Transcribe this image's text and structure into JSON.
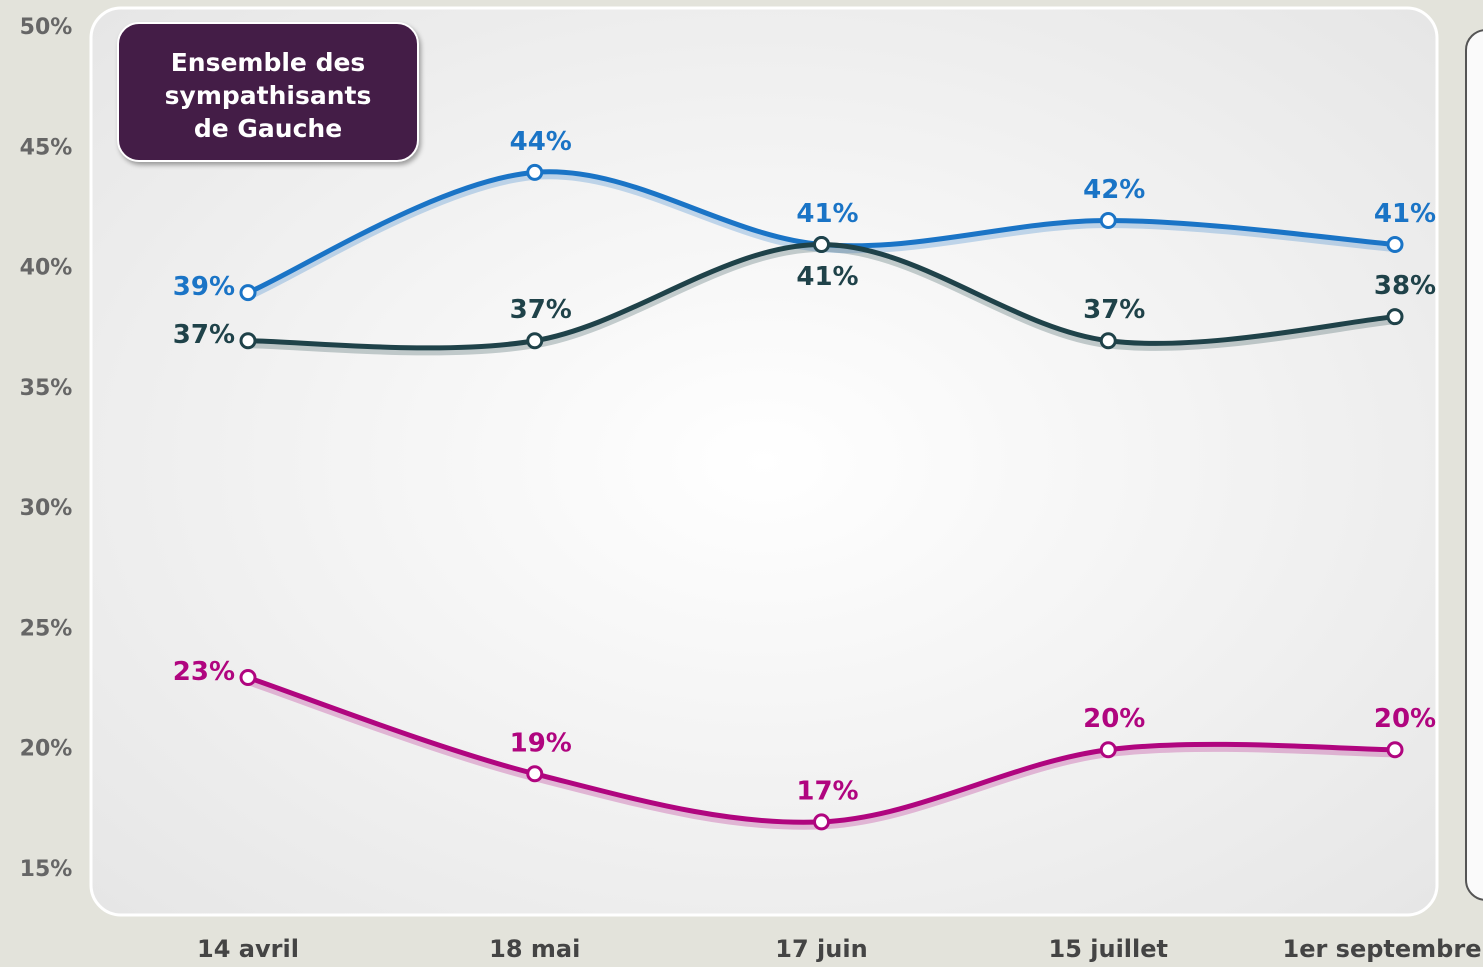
{
  "chart_data": {
    "type": "line",
    "annotation": "Ensemble des sympathisants de Gauche",
    "categories": [
      "14 avril",
      "18 mai",
      "17 juin",
      "15 juillet",
      "1er septembre"
    ],
    "series": [
      {
        "color": "#1a74c6",
        "values": [
          39,
          44,
          41,
          42,
          41
        ],
        "value_labels": [
          "39%",
          "44%",
          "41%",
          "42%",
          "41%"
        ]
      },
      {
        "color": "#1f4249",
        "values": [
          37,
          37,
          41,
          37,
          38
        ],
        "value_labels": [
          "37%",
          "37%",
          "41%",
          "37%",
          "38%"
        ]
      },
      {
        "color": "#b0057f",
        "values": [
          23,
          19,
          17,
          20,
          20
        ],
        "value_labels": [
          "23%",
          "19%",
          "17%",
          "20%",
          "20%"
        ]
      }
    ],
    "ylim": [
      15,
      50
    ],
    "yticks": [
      {
        "value": 15,
        "label": "15%"
      },
      {
        "value": 20,
        "label": "20%"
      },
      {
        "value": 25,
        "label": "25%"
      },
      {
        "value": 30,
        "label": "30%"
      },
      {
        "value": 35,
        "label": "35%"
      },
      {
        "value": 40,
        "label": "40%"
      },
      {
        "value": 45,
        "label": "45%"
      },
      {
        "value": 50,
        "label": "50%"
      }
    ]
  }
}
